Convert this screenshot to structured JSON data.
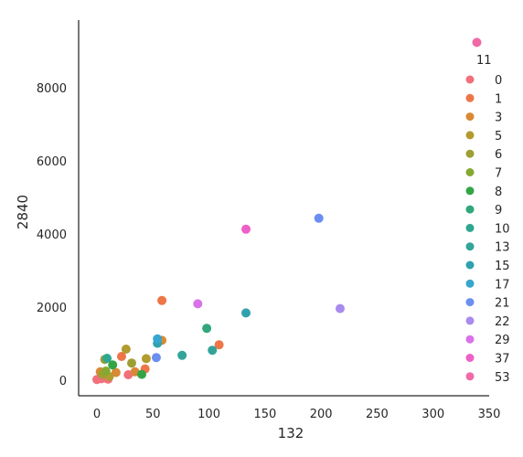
{
  "chart_data": {
    "type": "scatter",
    "title": "",
    "xlabel": "132",
    "ylabel": "2840",
    "xlim": [
      -15,
      350
    ],
    "ylim": [
      -450,
      9700
    ],
    "xticks": [
      0,
      50,
      100,
      150,
      200,
      250,
      300,
      350
    ],
    "yticks": [
      0,
      2000,
      4000,
      6000,
      8000
    ],
    "grid": false,
    "legend_title": "11",
    "legend_position": "right",
    "series": [
      {
        "name": "0",
        "color": "#f0707b",
        "points": [
          [
            0,
            20
          ],
          [
            4,
            40
          ],
          [
            7,
            60
          ],
          [
            10,
            30
          ],
          [
            28,
            150
          ]
        ]
      },
      {
        "name": "1",
        "color": "#ee7548",
        "points": [
          [
            22,
            650
          ],
          [
            43,
            310
          ],
          [
            58,
            2180
          ],
          [
            109,
            970
          ]
        ]
      },
      {
        "name": "3",
        "color": "#d98935",
        "points": [
          [
            3,
            230
          ],
          [
            17,
            210
          ],
          [
            34,
            230
          ],
          [
            58,
            1090
          ]
        ]
      },
      {
        "name": "5",
        "color": "#b29b2f",
        "points": [
          [
            11,
            100
          ],
          [
            26,
            850
          ],
          [
            44,
            590
          ]
        ]
      },
      {
        "name": "6",
        "color": "#9d9f33",
        "points": [
          [
            5,
            160
          ],
          [
            7,
            570
          ],
          [
            31,
            470
          ]
        ]
      },
      {
        "name": "7",
        "color": "#86a831",
        "points": [
          [
            8,
            250
          ]
        ]
      },
      {
        "name": "8",
        "color": "#34a544",
        "points": [
          [
            14,
            420
          ],
          [
            40,
            160
          ]
        ]
      },
      {
        "name": "9",
        "color": "#31a77a",
        "points": [
          [
            98,
            1420
          ]
        ]
      },
      {
        "name": "10",
        "color": "#2fa68f",
        "points": [
          [
            9,
            600
          ]
        ]
      },
      {
        "name": "13",
        "color": "#32a49a",
        "points": [
          [
            76,
            680
          ],
          [
            103,
            820
          ]
        ]
      },
      {
        "name": "15",
        "color": "#2fa2ad",
        "points": [
          [
            54,
            1010
          ],
          [
            133,
            1840
          ]
        ]
      },
      {
        "name": "17",
        "color": "#38a6cf",
        "points": [
          [
            54,
            1130
          ]
        ]
      },
      {
        "name": "21",
        "color": "#6b8ff0",
        "points": [
          [
            53,
            620
          ],
          [
            198,
            4430
          ]
        ]
      },
      {
        "name": "22",
        "color": "#a98bee",
        "points": [
          [
            217,
            1960
          ]
        ]
      },
      {
        "name": "29",
        "color": "#d972e8",
        "points": [
          [
            90,
            2090
          ]
        ]
      },
      {
        "name": "37",
        "color": "#ee5fc7",
        "points": [
          [
            133,
            4130
          ]
        ]
      },
      {
        "name": "53",
        "color": "#f06aa6",
        "points": [
          [
            339,
            9240
          ]
        ]
      }
    ]
  }
}
